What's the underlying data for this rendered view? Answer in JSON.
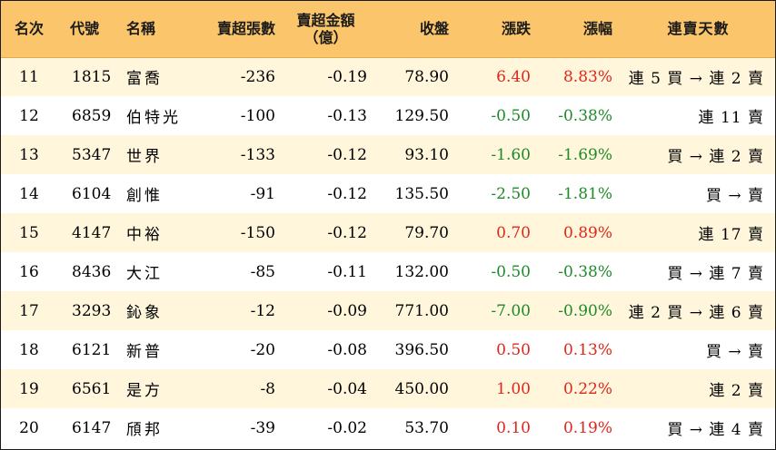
{
  "headers": {
    "rank": "名次",
    "code": "代號",
    "name": "名稱",
    "sell_lots": "賣超張數",
    "sell_amount_line1": "賣超金額",
    "sell_amount_line2": "（億）",
    "close": "收盤",
    "change": "漲跌",
    "pct": "漲幅",
    "days": "連賣天數"
  },
  "colors": {
    "header_bg": "#fbc66b",
    "odd_row_bg": "#fff6dc",
    "up": "#e0261b",
    "down": "#1e8a2a"
  },
  "rows": [
    {
      "rank": "11",
      "code": "1815",
      "name": "富喬",
      "lots": "-236",
      "amount": "-0.19",
      "close": "78.90",
      "change": "6.40",
      "pct": "8.83%",
      "days": "連 5 買 → 連 2 賣",
      "dir": "up"
    },
    {
      "rank": "12",
      "code": "6859",
      "name": "伯特光",
      "lots": "-100",
      "amount": "-0.13",
      "close": "129.50",
      "change": "-0.50",
      "pct": "-0.38%",
      "days": "連 11 賣",
      "dir": "down"
    },
    {
      "rank": "13",
      "code": "5347",
      "name": "世界",
      "lots": "-133",
      "amount": "-0.12",
      "close": "93.10",
      "change": "-1.60",
      "pct": "-1.69%",
      "days": "買 → 連 2 賣",
      "dir": "down"
    },
    {
      "rank": "14",
      "code": "6104",
      "name": "創惟",
      "lots": "-91",
      "amount": "-0.12",
      "close": "135.50",
      "change": "-2.50",
      "pct": "-1.81%",
      "days": "買 → 賣",
      "dir": "down"
    },
    {
      "rank": "15",
      "code": "4147",
      "name": "中裕",
      "lots": "-150",
      "amount": "-0.12",
      "close": "79.70",
      "change": "0.70",
      "pct": "0.89%",
      "days": "連 17 賣",
      "dir": "up"
    },
    {
      "rank": "16",
      "code": "8436",
      "name": "大江",
      "lots": "-85",
      "amount": "-0.11",
      "close": "132.00",
      "change": "-0.50",
      "pct": "-0.38%",
      "days": "買 → 連 7 賣",
      "dir": "down"
    },
    {
      "rank": "17",
      "code": "3293",
      "name": "鈊象",
      "lots": "-12",
      "amount": "-0.09",
      "close": "771.00",
      "change": "-7.00",
      "pct": "-0.90%",
      "days": "連 2 買 → 連 6 賣",
      "dir": "down"
    },
    {
      "rank": "18",
      "code": "6121",
      "name": "新普",
      "lots": "-20",
      "amount": "-0.08",
      "close": "396.50",
      "change": "0.50",
      "pct": "0.13%",
      "days": "買 → 賣",
      "dir": "up"
    },
    {
      "rank": "19",
      "code": "6561",
      "name": "是方",
      "lots": "-8",
      "amount": "-0.04",
      "close": "450.00",
      "change": "1.00",
      "pct": "0.22%",
      "days": "連 2 賣",
      "dir": "up"
    },
    {
      "rank": "20",
      "code": "6147",
      "name": "頎邦",
      "lots": "-39",
      "amount": "-0.02",
      "close": "53.70",
      "change": "0.10",
      "pct": "0.19%",
      "days": "買 → 連 4 賣",
      "dir": "up"
    }
  ]
}
